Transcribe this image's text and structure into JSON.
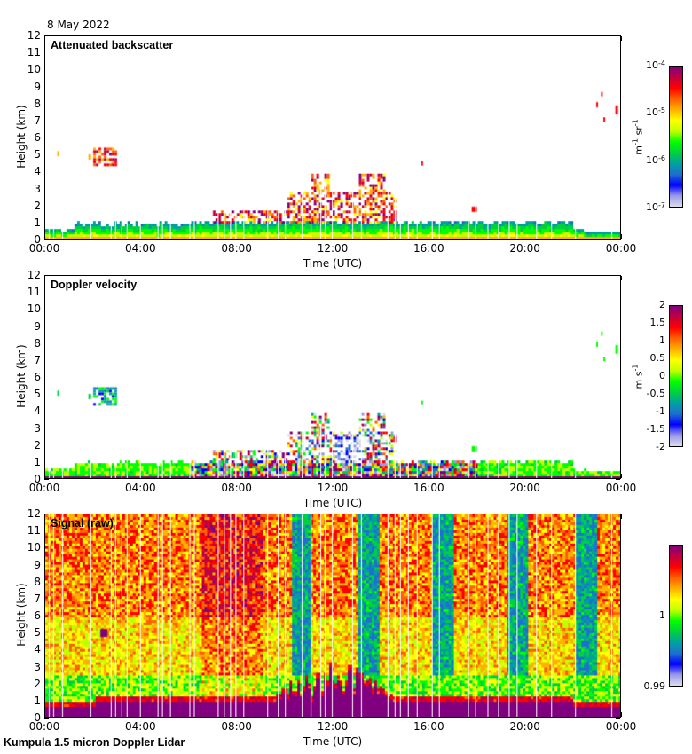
{
  "header": {
    "date": "8 May 2022"
  },
  "footer": {
    "instrument": "Kumpula 1.5 micron Doppler Lidar"
  },
  "colors": {
    "colormap": [
      "#dcdcec",
      "#9a9ae8",
      "#0000ff",
      "#1f6fd0",
      "#00a0a0",
      "#00d040",
      "#00ff00",
      "#c0ff00",
      "#ffff00",
      "#ffb000",
      "#ff6000",
      "#ff0000",
      "#c00040",
      "#800080"
    ]
  },
  "chart_data": [
    {
      "type": "heatmap",
      "title": "Attenuated backscatter",
      "xlabel": "Time (UTC)",
      "ylabel": "Height (km)",
      "x_ticks": [
        "00:00",
        "04:00",
        "08:00",
        "12:00",
        "16:00",
        "20:00",
        "00:00"
      ],
      "y_ticks": [
        "0",
        "1",
        "2",
        "3",
        "4",
        "5",
        "6",
        "7",
        "8",
        "9",
        "10",
        "11",
        "12"
      ],
      "xlim_hours": [
        0,
        24
      ],
      "ylim": [
        0,
        12
      ],
      "colorbar": {
        "scale": "log",
        "ticks": [
          {
            "base": "10",
            "exp": "-4"
          },
          {
            "base": "10",
            "exp": "-5"
          },
          {
            "base": "10",
            "exp": "-6"
          },
          {
            "base": "10",
            "exp": "-7"
          }
        ],
        "range": [
          1e-07,
          0.0001
        ],
        "unit_base": [
          "m",
          "sr"
        ],
        "unit_exp": [
          "-1",
          "-1"
        ]
      },
      "features": "boundary layer 0–1 km all day; convective cloud 11:00–14:30 up to ~4 km; elevated layer ~5 km at 02:00–03:00; high returns ~7–9 km near 23:30"
    },
    {
      "type": "heatmap",
      "title": "Doppler velocity",
      "xlabel": "Time (UTC)",
      "ylabel": "Height (km)",
      "x_ticks": [
        "00:00",
        "04:00",
        "08:00",
        "12:00",
        "16:00",
        "20:00",
        "00:00"
      ],
      "y_ticks": [
        "0",
        "1",
        "2",
        "3",
        "4",
        "5",
        "6",
        "7",
        "8",
        "9",
        "10",
        "11",
        "12"
      ],
      "xlim_hours": [
        0,
        24
      ],
      "ylim": [
        0,
        12
      ],
      "colorbar": {
        "scale": "linear",
        "ticks": [
          "2",
          "1.5",
          "1",
          "0.5",
          "0",
          "-0.5",
          "-1",
          "-1.5",
          "-2"
        ],
        "range": [
          -2,
          2
        ],
        "unit_base": [
          "m",
          "s"
        ],
        "unit_exp": [
          "",
          "-1"
        ]
      }
    },
    {
      "type": "heatmap",
      "title": "Signal (raw)",
      "xlabel": "Time (UTC)",
      "ylabel": "Height (km)",
      "x_ticks": [
        "00:00",
        "04:00",
        "08:00",
        "12:00",
        "16:00",
        "20:00",
        "00:00"
      ],
      "y_ticks": [
        "0",
        "1",
        "2",
        "3",
        "4",
        "5",
        "6",
        "7",
        "8",
        "9",
        "10",
        "11",
        "12"
      ],
      "xlim_hours": [
        0,
        24
      ],
      "ylim": [
        0,
        12
      ],
      "colorbar": {
        "scale": "linear",
        "ticks": [
          "1",
          "0.99"
        ],
        "range": [
          0.99,
          1.01
        ]
      },
      "low_signal_bands_hours": [
        [
          10.2,
          11.0
        ],
        [
          13.0,
          13.9
        ],
        [
          16.1,
          17.0
        ],
        [
          19.2,
          20.1
        ],
        [
          22.1,
          23.0
        ]
      ]
    }
  ]
}
